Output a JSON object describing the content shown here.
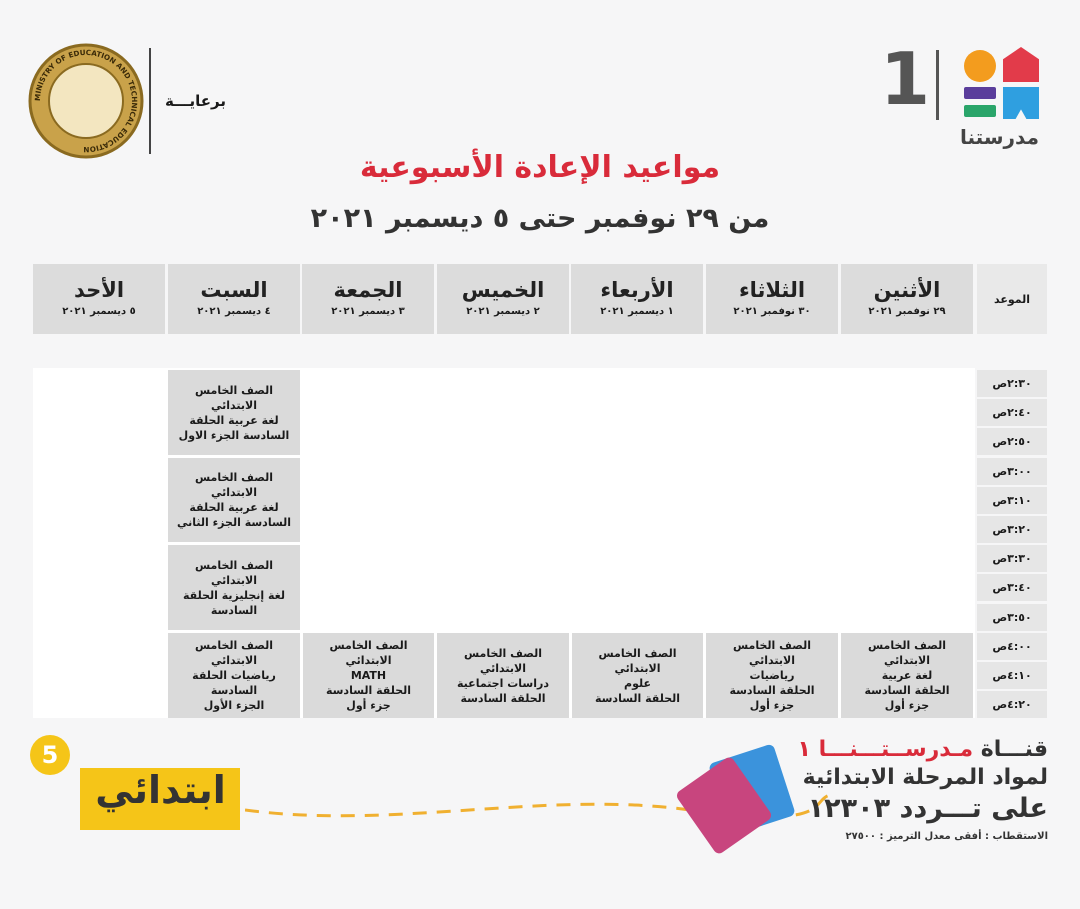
{
  "header": {
    "sponsor_label": "برعايـــة",
    "ministry_seal_text": "MINISTRY OF EDUCATION AND TECHNICAL EDUCATION",
    "channel_logo_number": "1",
    "channel_logo_name": "مدرستنا",
    "title": "مواعيد الإعادة الأسبوعية",
    "subtitle": "من ٢٩ نوفمبر حتى ٥ ديسمبر ٢٠٢١"
  },
  "schedule": {
    "time_header": "الموعد",
    "days": [
      {
        "name": "الأثنين",
        "date": "٢٩ نوفمبر ٢٠٢١"
      },
      {
        "name": "الثلاثاء",
        "date": "٣٠ نوفمبر ٢٠٢١"
      },
      {
        "name": "الأربعاء",
        "date": "١ ديسمبر ٢٠٢١"
      },
      {
        "name": "الخميس",
        "date": "٢ ديسمبر ٢٠٢١"
      },
      {
        "name": "الجمعة",
        "date": "٣ ديسمبر ٢٠٢١"
      },
      {
        "name": "السبت",
        "date": "٤ ديسمبر ٢٠٢١"
      },
      {
        "name": "الأحد",
        "date": "٥ ديسمبر ٢٠٢١"
      }
    ],
    "times": [
      "٢:٣٠ص",
      "٢:٤٠ص",
      "٢:٥٠ص",
      "٣:٠٠ص",
      "٣:١٠ص",
      "٣:٢٠ص",
      "٣:٣٠ص",
      "٣:٤٠ص",
      "٣:٥٠ص",
      "٤:٠٠ص",
      "٤:١٠ص",
      "٤:٢٠ص"
    ],
    "cells": {
      "monday_400": "الصف الخامس الابتدائي\nلغة عربية\nالحلقة السادسة\nجزء أول",
      "tuesday_400": "الصف الخامس الابتدائي\nرياضيات\nالحلقة السادسة\nجزء أول",
      "wednesday_400": "الصف الخامس الابتدائي\nعلوم\nالحلقة السادسة",
      "thursday_400": "الصف الخامس الابتدائي\nدراسات اجتماعية\nالحلقة السادسة",
      "friday_400": "الصف الخامس الابتدائي\nMATH\nالحلقة السادسة\nجزء أول",
      "saturday_230": "الصف الخامس الابتدائي\nلغة عربية   الحلقة\nالسادسة   الجزء الاول",
      "saturday_300": "الصف الخامس الابتدائي\nلغة عربية   الحلقة\nالسادسة   الجزء الثاني",
      "saturday_330": "الصف الخامس الابتدائي\nلغة إنجليزية   الحلقة\nالسادسة",
      "saturday_400": "الصف الخامس الابتدائي\nرياضيات   الحلقة السادسة\nالجزء الأول"
    }
  },
  "footer": {
    "channel_prefix": "قنـــاة",
    "channel_name": "مـدرســتـــنـــا ١",
    "line2": "لمواد المرحلة الابتدائية",
    "line3": "على تـــردد ١٢٣٠٣",
    "reception": "الاستقطاب : أفقى معدل الترميز : ٢٧٥٠٠",
    "grade_badge_text": "ابتدائي",
    "grade_badge_number": "5"
  },
  "colors": {
    "accent_red": "#d92b3a",
    "badge_yellow": "#f5c518",
    "cell_gray": "#dadada"
  }
}
